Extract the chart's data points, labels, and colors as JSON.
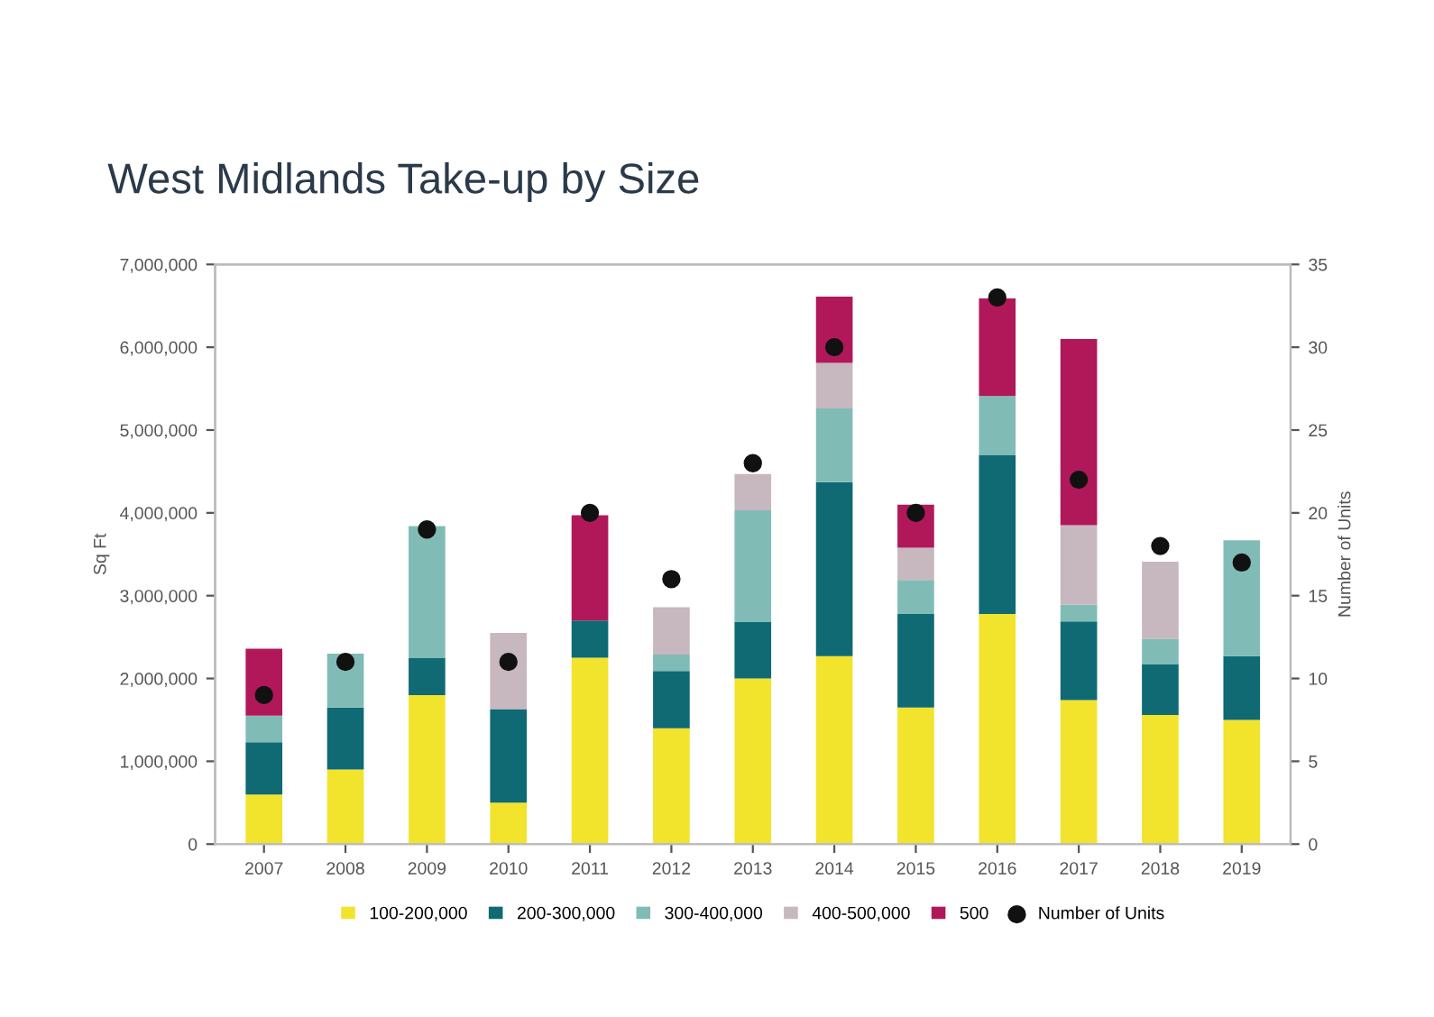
{
  "chart_data": {
    "type": "bar",
    "title": "West Midlands Take-up by Size",
    "ylabel": "Sq Ft",
    "y2label": "Number of Units",
    "stacked": true,
    "categories": [
      "2007",
      "2008",
      "2009",
      "2010",
      "2011",
      "2012",
      "2013",
      "2014",
      "2015",
      "2016",
      "2017",
      "2018",
      "2019"
    ],
    "series": [
      {
        "name": "100-200,000",
        "color": "#f2e32c",
        "values": [
          600000,
          900000,
          1800000,
          500000,
          2250000,
          1400000,
          2000000,
          2270000,
          1650000,
          2780000,
          1740000,
          1560000,
          1500000
        ]
      },
      {
        "name": "200-300,000",
        "color": "#0f6a74",
        "values": [
          630000,
          750000,
          450000,
          1130000,
          450000,
          690000,
          680000,
          2100000,
          1130000,
          1920000,
          950000,
          610000,
          770000
        ]
      },
      {
        "name": "300-400,000",
        "color": "#80bcb5",
        "values": [
          320000,
          650000,
          1590000,
          0,
          0,
          200000,
          1350000,
          890000,
          410000,
          710000,
          200000,
          310000,
          1400000
        ]
      },
      {
        "name": "400-500,000",
        "color": "#c7b7bf",
        "values": [
          0,
          0,
          0,
          920000,
          0,
          570000,
          440000,
          550000,
          390000,
          0,
          960000,
          930000,
          0
        ]
      },
      {
        "name": "500",
        "color": "#b0185a",
        "values": [
          810000,
          0,
          0,
          0,
          1270000,
          0,
          0,
          800000,
          520000,
          1180000,
          2250000,
          0,
          0
        ]
      },
      {
        "name": "Number of Units",
        "type": "scatter",
        "axis": "y2",
        "color": "#111111",
        "marker": "circle",
        "values": [
          9,
          11,
          19,
          11,
          20,
          16,
          23,
          30,
          20,
          33,
          22,
          18,
          17
        ]
      }
    ],
    "ylim": [
      0,
      7000000
    ],
    "yticks": [
      {
        "value": 0,
        "label": "0"
      },
      {
        "value": 1000000,
        "label": "1,000,000"
      },
      {
        "value": 2000000,
        "label": "2,000,000"
      },
      {
        "value": 3000000,
        "label": "3,000,000"
      },
      {
        "value": 4000000,
        "label": "4,000,000"
      },
      {
        "value": 5000000,
        "label": "5,000,000"
      },
      {
        "value": 6000000,
        "label": "6,000,000"
      },
      {
        "value": 7000000,
        "label": "7,000,000"
      }
    ],
    "y2lim": [
      0,
      35
    ],
    "y2ticks": [
      0,
      5,
      10,
      15,
      20,
      25,
      30,
      35
    ],
    "legend": "bottom"
  }
}
